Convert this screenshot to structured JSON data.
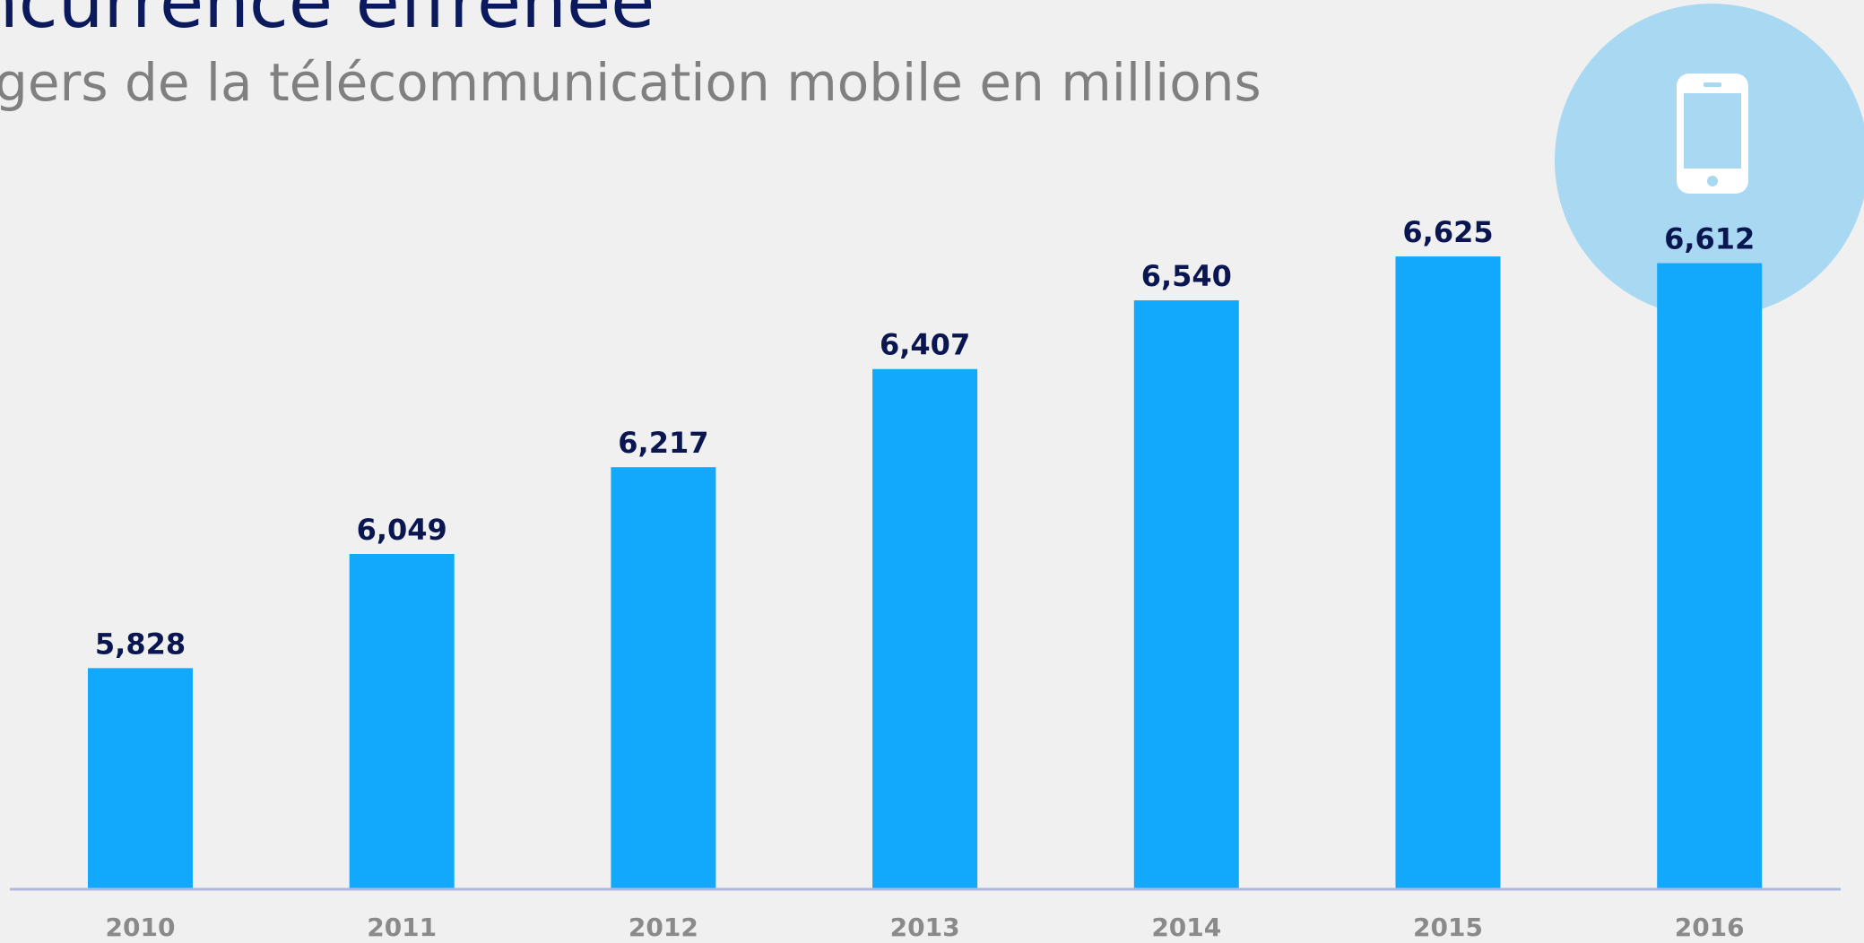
{
  "chart_data": {
    "type": "bar",
    "title": "ncurrence effrénée",
    "subtitle": "gers de la télécommunication mobile en millions",
    "categories": [
      "2010",
      "2011",
      "2012",
      "2013",
      "2014",
      "2015",
      "2016"
    ],
    "values": [
      5828,
      6049,
      6217,
      6407,
      6540,
      6625,
      6612
    ],
    "value_labels": [
      "5,828",
      "6,049",
      "6,217",
      "6,407",
      "6,540",
      "6,625",
      "6,612"
    ],
    "color": "#12a8fb",
    "ylim": [
      5400,
      7000
    ]
  }
}
